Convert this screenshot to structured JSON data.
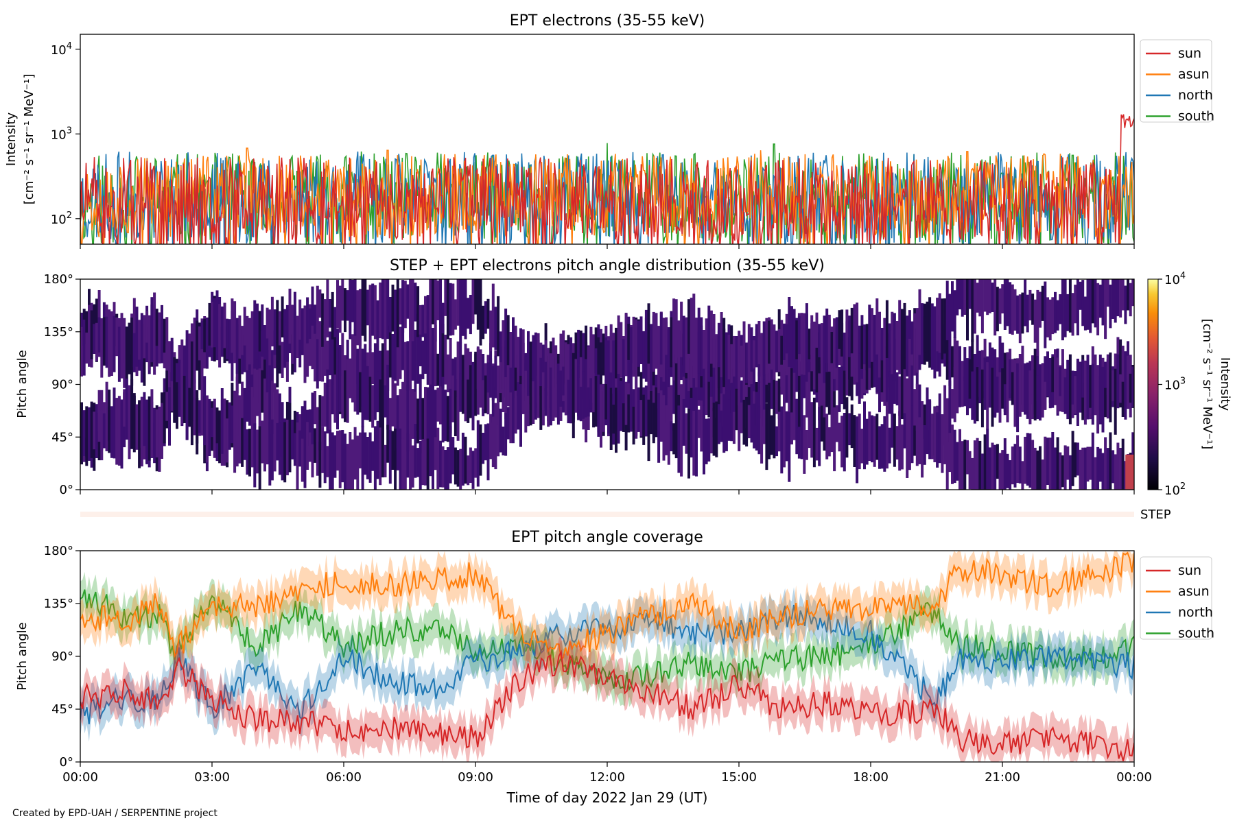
{
  "colors": {
    "sun": "#d62728",
    "asun": "#ff7f0e",
    "north": "#1f77b4",
    "south": "#2ca02c",
    "pad_fill": "#3b0f70",
    "step_strip": "#fdf0ea"
  },
  "footer": "Created by EPD-UAH / SERPENTINE project",
  "xaxis": {
    "label": "Time of day 2022 Jan 29 (UT)",
    "ticks": [
      "00:00",
      "03:00",
      "06:00",
      "09:00",
      "12:00",
      "15:00",
      "18:00",
      "21:00",
      "00:00"
    ],
    "range_hours": [
      0,
      24
    ]
  },
  "chart_data": [
    {
      "type": "line",
      "title": "EPT electrons (35-55 keV)",
      "ylabel_line1": "Intensity",
      "ylabel_line2": "[cm⁻² s⁻¹ sr⁻¹ MeV⁻¹]",
      "yscale": "log",
      "ylim": [
        50,
        15000
      ],
      "yticks": [
        {
          "value": 100,
          "base": "10",
          "exp": "2"
        },
        {
          "value": 1000,
          "base": "10",
          "exp": "3"
        },
        {
          "value": 10000,
          "base": "10",
          "exp": "4"
        }
      ],
      "legend": "outside right, upper",
      "series": [
        {
          "name": "south",
          "color_key": "south",
          "typical": 170,
          "spread": 0.55,
          "seed": 11,
          "spikes": [
            [
              12.0,
              780
            ],
            [
              15.8,
              760
            ],
            [
              6.4,
              620
            ],
            [
              22.6,
              560
            ]
          ]
        },
        {
          "name": "north",
          "color_key": "north",
          "typical": 175,
          "spread": 0.55,
          "seed": 23,
          "spikes": [
            [
              3.2,
              520
            ],
            [
              9.4,
              560
            ],
            [
              17.2,
              540
            ]
          ]
        },
        {
          "name": "asun",
          "color_key": "asun",
          "typical": 185,
          "spread": 0.5,
          "seed": 37,
          "spikes": [
            [
              3.8,
              680
            ],
            [
              7.0,
              640
            ],
            [
              15.5,
              640
            ],
            [
              20.2,
              620
            ]
          ]
        },
        {
          "name": "sun",
          "color_key": "sun",
          "typical": 150,
          "spread": 0.55,
          "seed": 51,
          "spikes": [
            [
              23.75,
              1700
            ],
            [
              23.85,
              1500
            ],
            [
              23.95,
              1250
            ]
          ]
        }
      ],
      "legend_entries": [
        "sun",
        "asun",
        "north",
        "south"
      ]
    },
    {
      "type": "heatmap",
      "title": "STEP + EPT electrons pitch angle distribution (35-55 keV)",
      "ylabel": "Pitch angle",
      "ylim": [
        0,
        180
      ],
      "yticks": [
        "0°",
        "45°",
        "90°",
        "135°",
        "180°"
      ],
      "ytick_values": [
        0,
        45,
        90,
        135,
        180
      ],
      "colorbar": {
        "label_line1": "Intensity",
        "label_line2": "[cm⁻² s⁻¹ sr⁻¹ MeV⁻¹]",
        "scale": "log",
        "range": [
          100,
          10000
        ],
        "ticks": [
          {
            "value": 100,
            "base": "10",
            "exp": "2"
          },
          {
            "value": 1000,
            "base": "10",
            "exp": "3"
          },
          {
            "value": 10000,
            "base": "10",
            "exp": "4"
          }
        ],
        "colormap": "inferno"
      },
      "step_label": "STEP"
    },
    {
      "type": "line",
      "title": "EPT pitch angle coverage",
      "ylabel": "Pitch angle",
      "ylim": [
        0,
        180
      ],
      "yticks": [
        "0°",
        "45°",
        "90°",
        "135°",
        "180°"
      ],
      "ytick_values": [
        0,
        45,
        90,
        135,
        180
      ],
      "shaded_band": true,
      "legend": "outside right, upper",
      "legend_entries": [
        "sun",
        "asun",
        "north",
        "south"
      ],
      "series": [
        {
          "name": "south",
          "color_key": "south",
          "x": [
            0,
            1,
            1.8,
            2.2,
            3,
            4,
            5,
            6,
            7,
            8,
            9,
            10,
            11,
            12,
            13,
            14,
            15,
            16,
            17,
            18,
            19.5,
            20,
            21,
            22,
            23,
            24
          ],
          "y": [
            143,
            125,
            125,
            90,
            140,
            95,
            130,
            100,
            110,
            115,
            95,
            100,
            85,
            70,
            75,
            85,
            75,
            88,
            90,
            100,
            130,
            100,
            95,
            90,
            88,
            97
          ]
        },
        {
          "name": "north",
          "color_key": "north",
          "x": [
            0,
            1,
            1.8,
            2.2,
            3,
            4,
            5,
            6,
            7,
            8,
            9,
            10,
            11,
            12,
            13,
            14,
            15,
            16,
            17,
            18,
            19.5,
            20,
            21,
            22,
            23,
            24
          ],
          "y": [
            40,
            55,
            50,
            90,
            45,
            80,
            45,
            90,
            70,
            60,
            85,
            95,
            110,
            115,
            120,
            110,
            110,
            125,
            120,
            110,
            50,
            90,
            85,
            90,
            85,
            82
          ]
        },
        {
          "name": "asun",
          "color_key": "asun",
          "x": [
            0,
            1,
            1.8,
            2.2,
            3,
            4,
            5,
            6,
            7,
            8,
            9,
            10,
            11,
            12,
            13,
            14,
            15,
            16,
            17,
            18,
            19.5,
            20,
            21,
            22,
            23,
            24
          ],
          "y": [
            125,
            120,
            135,
            95,
            135,
            130,
            145,
            155,
            150,
            155,
            160,
            110,
            95,
            110,
            125,
            135,
            110,
            125,
            130,
            130,
            135,
            165,
            160,
            150,
            160,
            170
          ]
        },
        {
          "name": "sun",
          "color_key": "sun",
          "x": [
            0,
            1,
            1.8,
            2.2,
            3,
            4,
            5,
            6,
            7,
            8,
            9,
            10,
            11,
            12,
            13,
            14,
            15,
            16,
            17,
            18,
            19.5,
            20,
            21,
            22,
            23,
            24
          ],
          "y": [
            55,
            60,
            50,
            80,
            55,
            35,
            35,
            25,
            30,
            25,
            20,
            70,
            85,
            70,
            60,
            45,
            65,
            45,
            50,
            40,
            45,
            20,
            15,
            20,
            15,
            10
          ]
        }
      ]
    }
  ]
}
